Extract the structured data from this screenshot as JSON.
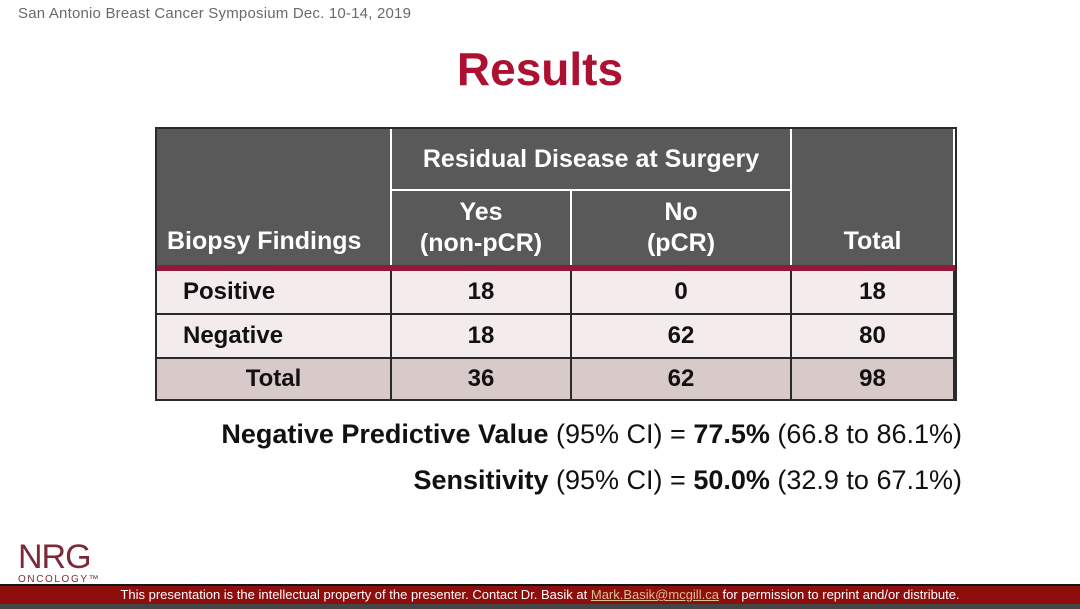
{
  "header": {
    "conference": "San Antonio Breast Cancer Symposium Dec. 10-14, 2019",
    "title": "Results"
  },
  "table": {
    "row_header": "Biopsy Findings",
    "col_group_header": "Residual Disease at Surgery",
    "total_header": "Total",
    "col_headers": [
      {
        "line1": "Yes",
        "line2": "(non-pCR)"
      },
      {
        "line1": "No",
        "line2": "(pCR)"
      }
    ],
    "rows": [
      {
        "label": "Positive",
        "yes": "18",
        "no": "0",
        "total": "18"
      },
      {
        "label": "Negative",
        "yes": "18",
        "no": "62",
        "total": "80"
      },
      {
        "label": "Total",
        "yes": "36",
        "no": "62",
        "total": "98"
      }
    ]
  },
  "stats": [
    {
      "label": "Negative Predictive Value",
      "ci": " (95% CI) = ",
      "value": "77.5%",
      "range": " (66.8 to 86.1%)"
    },
    {
      "label": "Sensitivity",
      "ci": " (95% CI) = ",
      "value": "50.0%",
      "range": " (32.9 to 67.1%)"
    }
  ],
  "logo": {
    "name": "NRG",
    "sub": "ONCOLOGY™"
  },
  "footer": {
    "text_before": "This presentation is the intellectual property of the presenter. Contact Dr. Basik at ",
    "link": "Mark.Basik@mcgill.ca",
    "text_after": " for permission to reprint and/or distribute."
  },
  "colors": {
    "title_red": "#AC1132",
    "conference_gray": "#6a6a6a",
    "header_gray": "#595959",
    "divider_crimson": "#95183A",
    "row_pink": "#F4ECEC",
    "total_row_pink": "#D9CACA",
    "footer_red": "#8E0D0D",
    "link_gold": "#D9BF94",
    "logo_maroon": "#7C2938"
  }
}
